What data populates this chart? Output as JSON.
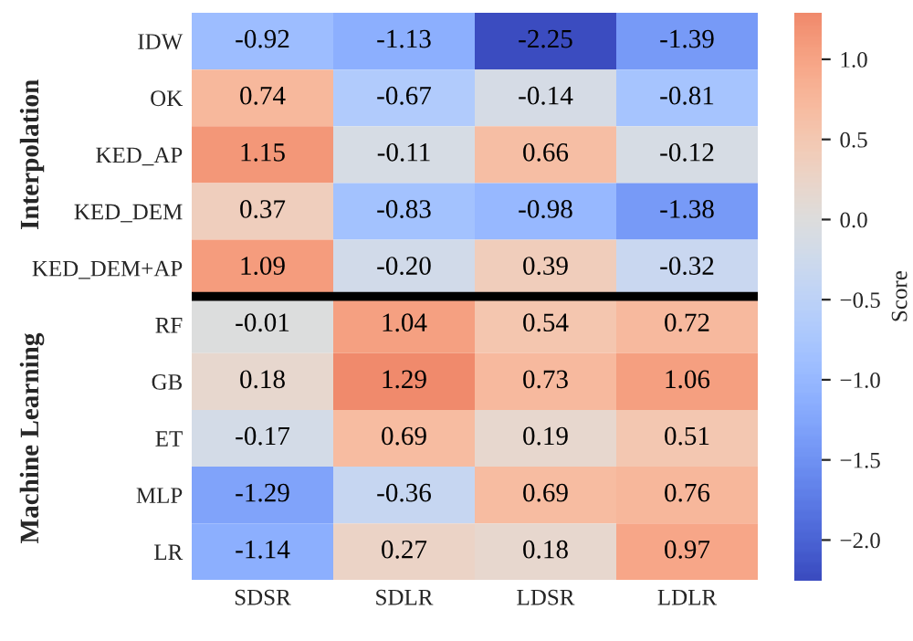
{
  "chart_data": {
    "type": "heatmap",
    "categories": [
      "SDSR",
      "SDLR",
      "LDSR",
      "LDLR"
    ],
    "y_categories": [
      "IDW",
      "OK",
      "KED_AP",
      "KED_DEM",
      "KED_DEM+AP",
      "RF",
      "GB",
      "ET",
      "MLP",
      "LR"
    ],
    "cells": [
      [
        -0.92,
        -1.13,
        -2.25,
        -1.39
      ],
      [
        0.74,
        -0.67,
        -0.14,
        -0.81
      ],
      [
        1.15,
        -0.11,
        0.66,
        -0.12
      ],
      [
        0.37,
        -0.83,
        -0.98,
        -1.38
      ],
      [
        1.09,
        -0.2,
        0.39,
        -0.32
      ],
      [
        -0.01,
        1.04,
        0.54,
        0.72
      ],
      [
        0.18,
        1.29,
        0.73,
        1.06
      ],
      [
        -0.17,
        0.69,
        0.19,
        0.51
      ],
      [
        -1.29,
        -0.36,
        0.69,
        0.76
      ],
      [
        -1.14,
        0.27,
        0.18,
        0.97
      ]
    ],
    "cell_labels": [
      [
        "-0.92",
        "-1.13",
        "-2.25",
        "-1.39"
      ],
      [
        "0.74",
        "-0.67",
        "-0.14",
        "-0.81"
      ],
      [
        "1.15",
        "-0.11",
        "0.66",
        "-0.12"
      ],
      [
        "0.37",
        "-0.83",
        "-0.98",
        "-1.38"
      ],
      [
        "1.09",
        "-0.20",
        "0.39",
        "-0.32"
      ],
      [
        "-0.01",
        "1.04",
        "0.54",
        "0.72"
      ],
      [
        "0.18",
        "1.29",
        "0.73",
        "1.06"
      ],
      [
        "-0.17",
        "0.69",
        "0.19",
        "0.51"
      ],
      [
        "-1.29",
        "-0.36",
        "0.69",
        "0.76"
      ],
      [
        "-1.14",
        "0.27",
        "0.18",
        "0.97"
      ]
    ],
    "clabel": "Score",
    "clim": [
      -2.25,
      1.29
    ],
    "cticks": [
      {
        "value": -2.0,
        "label": "−2.0"
      },
      {
        "value": -1.5,
        "label": "−1.5"
      },
      {
        "value": -1.0,
        "label": "−1.0"
      },
      {
        "value": -0.5,
        "label": "−0.5"
      },
      {
        "value": 0,
        "label": "0.0"
      },
      0.5,
      {
        "value": 1,
        "label": "1.0"
      }
    ],
    "annotations": [
      "Interpolation",
      "Machine Learning"
    ]
  }
}
